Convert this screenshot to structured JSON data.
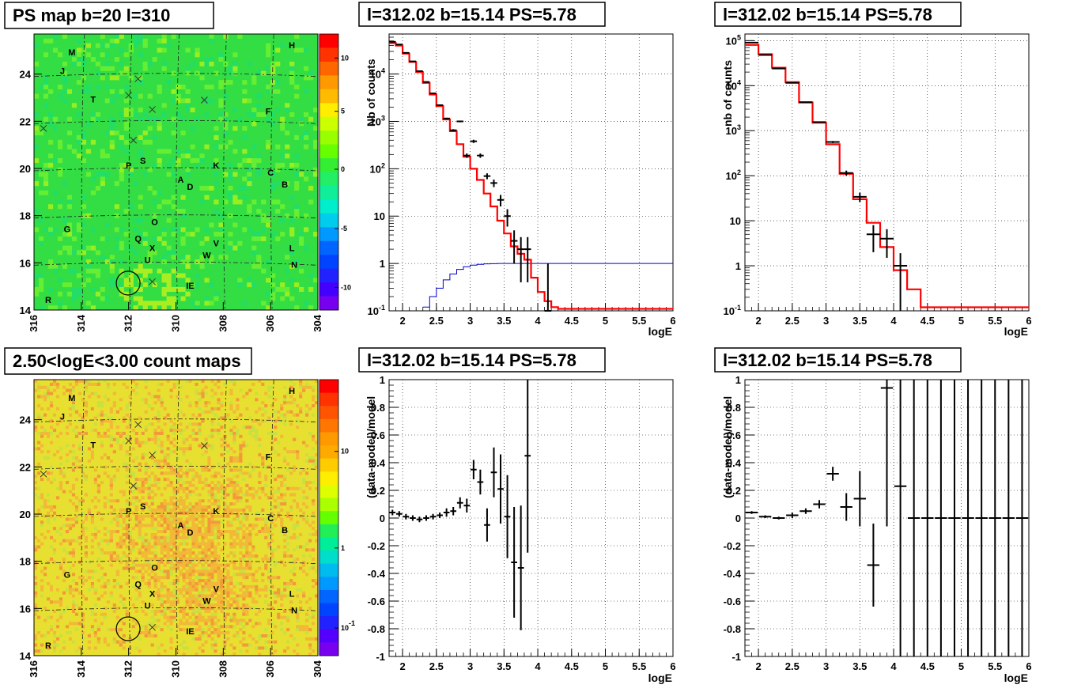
{
  "titles": {
    "map_ps": "PS map b=20 l=310",
    "map_counts": "2.50<logE<3.00 count maps",
    "spec1": "l=312.02 b=15.14 PS=5.78",
    "spec2": "l=312.02 b=15.14 PS=5.78",
    "res1": "l=312.02 b=15.14 PS=5.78",
    "res2": "l=312.02 b=15.14 PS=5.78"
  },
  "labels": {
    "y_nb_counts": "Nb of counts",
    "y_nb_counts_2": "nb of counts",
    "y_resid": "(data-model)/model",
    "x_loge": "logE"
  },
  "colors": {
    "model_line": "#ff0000",
    "ps_line": "#0000cc",
    "data": "#000000",
    "map_bg_ps": "#33dd44",
    "map_bg_counts": "#e8e030"
  },
  "chart_data": [
    {
      "type": "heatmap",
      "title": "PS map b=20 l=310",
      "x_range": [
        316,
        304
      ],
      "y_range": [
        14,
        25.7
      ],
      "x_ticks": [
        "316",
        "314",
        "312",
        "310",
        "308",
        "306",
        "304"
      ],
      "y_ticks": [
        "14",
        "16",
        "18",
        "20",
        "22",
        "24"
      ],
      "colorbar_ticks": [
        "10",
        "5",
        "0",
        "-5",
        "-10"
      ],
      "colorbar_range": [
        -12.5,
        12.5
      ],
      "sources": [
        {
          "name": "M",
          "l": 314.4,
          "b": 24.8
        },
        {
          "name": "H",
          "l": 305.1,
          "b": 25.1
        },
        {
          "name": "J",
          "l": 314.8,
          "b": 24.0
        },
        {
          "name": "T",
          "l": 313.5,
          "b": 22.8
        },
        {
          "name": "F",
          "l": 306.1,
          "b": 22.3
        },
        {
          "name": "P",
          "l": 312.0,
          "b": 20.0
        },
        {
          "name": "S",
          "l": 311.4,
          "b": 20.2
        },
        {
          "name": "K",
          "l": 308.3,
          "b": 20.0
        },
        {
          "name": "C",
          "l": 306.0,
          "b": 19.7
        },
        {
          "name": "A",
          "l": 309.8,
          "b": 19.4
        },
        {
          "name": "D",
          "l": 309.4,
          "b": 19.1
        },
        {
          "name": "B",
          "l": 305.4,
          "b": 19.2
        },
        {
          "name": "O",
          "l": 310.9,
          "b": 17.6
        },
        {
          "name": "G",
          "l": 314.6,
          "b": 17.3
        },
        {
          "name": "Q",
          "l": 311.6,
          "b": 16.9
        },
        {
          "name": "V",
          "l": 308.3,
          "b": 16.7
        },
        {
          "name": "X",
          "l": 311.0,
          "b": 16.5
        },
        {
          "name": "L",
          "l": 305.1,
          "b": 16.5
        },
        {
          "name": "W",
          "l": 308.7,
          "b": 16.2
        },
        {
          "name": "U",
          "l": 311.2,
          "b": 16.0
        },
        {
          "name": "N",
          "l": 305.0,
          "b": 15.8
        },
        {
          "name": "IE",
          "l": 309.4,
          "b": 14.9
        },
        {
          "name": "R",
          "l": 315.4,
          "b": 14.3
        }
      ],
      "crosses": [
        {
          "l": 315.6,
          "b": 21.7
        },
        {
          "l": 312.0,
          "b": 23.1
        },
        {
          "l": 311.6,
          "b": 23.8
        },
        {
          "l": 311.0,
          "b": 22.5
        },
        {
          "l": 308.8,
          "b": 22.9
        },
        {
          "l": 311.8,
          "b": 21.2
        },
        {
          "l": 311.0,
          "b": 15.2
        }
      ],
      "circle": {
        "l": 312.02,
        "b": 15.14
      }
    },
    {
      "type": "heatmap",
      "title": "2.50<logE<3.00 count maps",
      "x_range": [
        316,
        304
      ],
      "y_range": [
        14,
        25.7
      ],
      "x_ticks": [
        "316",
        "314",
        "312",
        "310",
        "308",
        "306",
        "304"
      ],
      "y_ticks": [
        "14",
        "16",
        "18",
        "20",
        "22",
        "24"
      ],
      "colorbar_ticks": [
        "10",
        "1",
        "10-1"
      ],
      "colorbar_scale": "log"
    },
    {
      "type": "line",
      "title": "l=312.02 b=15.14 PS=5.78",
      "xlabel": "logE",
      "ylabel": "Nb of counts",
      "y_scale": "log",
      "xlim": [
        1.8,
        6
      ],
      "ylim": [
        0.1,
        70000
      ],
      "x_ticks": [
        "2",
        "2.5",
        "3",
        "3.5",
        "4",
        "4.5",
        "5",
        "5.5",
        "6"
      ],
      "y_ticks": [
        "10-1",
        "1",
        "10",
        "102",
        "103",
        "104"
      ],
      "bin_width": 0.1,
      "model_bins_low_edge": [
        1.8,
        1.9,
        2.0,
        2.1,
        2.2,
        2.3,
        2.4,
        2.5,
        2.6,
        2.7,
        2.8,
        2.9,
        3.0,
        3.1,
        3.2,
        3.3,
        3.4,
        3.5,
        3.6,
        3.7,
        3.8,
        3.9,
        4.0,
        4.1,
        4.2,
        4.3
      ],
      "model_values": [
        45000,
        40000,
        27000,
        18000,
        11000,
        6500,
        3700,
        2100,
        1100,
        620,
        330,
        180,
        100,
        58,
        30,
        16,
        8,
        4.3,
        2.3,
        1.6,
        1.2,
        0.5,
        0.25,
        0.16,
        0.12,
        0.11
      ],
      "ps_model_bins_low_edge": [
        2.3,
        2.4,
        2.5,
        2.6,
        2.7,
        2.8,
        2.9,
        3.0,
        3.1,
        3.2,
        3.3,
        3.4,
        3.5
      ],
      "ps_model_values": [
        0.12,
        0.2,
        0.3,
        0.45,
        0.6,
        0.75,
        0.85,
        0.92,
        0.96,
        0.98,
        0.99,
        1.0,
        1.0
      ],
      "data_points": [
        {
          "x": 1.85,
          "y": 48000,
          "err": 300
        },
        {
          "x": 1.95,
          "y": 42000,
          "err": 280
        },
        {
          "x": 2.05,
          "y": 28000,
          "err": 220
        },
        {
          "x": 2.15,
          "y": 18500,
          "err": 180
        },
        {
          "x": 2.25,
          "y": 11500,
          "err": 140
        },
        {
          "x": 2.35,
          "y": 6800,
          "err": 110
        },
        {
          "x": 2.45,
          "y": 3900,
          "err": 80
        },
        {
          "x": 2.55,
          "y": 2200,
          "err": 60
        },
        {
          "x": 2.65,
          "y": 1150,
          "err": 45
        },
        {
          "x": 2.75,
          "y": 650,
          "err": 35
        },
        {
          "x": 2.85,
          "y": 1000,
          "err": 40
        },
        {
          "x": 2.95,
          "y": 190,
          "err": 20
        },
        {
          "x": 3.05,
          "y": 380,
          "err": 30
        },
        {
          "x": 3.15,
          "y": 190,
          "err": 20
        },
        {
          "x": 3.25,
          "y": 70,
          "err": 10
        },
        {
          "x": 3.35,
          "y": 50,
          "err": 9
        },
        {
          "x": 3.45,
          "y": 22,
          "err": 6
        },
        {
          "x": 3.55,
          "y": 10,
          "err": 4
        },
        {
          "x": 3.65,
          "y": 3,
          "err": 2
        },
        {
          "x": 3.75,
          "y": 2,
          "err": 1.6
        },
        {
          "x": 3.85,
          "y": 2,
          "err": 1.6
        },
        {
          "x": 4.15,
          "y": 0.1,
          "err": 0.9
        }
      ]
    },
    {
      "type": "line",
      "title": "l=312.02 b=15.14 PS=5.78",
      "xlabel": "logE",
      "ylabel": "nb of counts",
      "y_scale": "log",
      "xlim": [
        1.8,
        6
      ],
      "ylim": [
        0.1,
        140000
      ],
      "x_ticks": [
        "2",
        "2.5",
        "3",
        "3.5",
        "4",
        "4.5",
        "5",
        "5.5",
        "6"
      ],
      "y_ticks": [
        "10-1",
        "1",
        "10",
        "102",
        "103",
        "104",
        "105"
      ],
      "bin_width": 0.2,
      "model_bins_low_edge": [
        1.8,
        2.0,
        2.2,
        2.4,
        2.6,
        2.8,
        3.0,
        3.2,
        3.4,
        3.6,
        3.8,
        4.0,
        4.2,
        4.4
      ],
      "model_values": [
        80000,
        50000,
        25000,
        12000,
        4200,
        1500,
        500,
        110,
        30,
        9,
        2.6,
        0.8,
        0.3,
        0.12
      ],
      "data_points": [
        {
          "x": 1.9,
          "y": 90000,
          "err": 400
        },
        {
          "x": 2.1,
          "y": 48000,
          "err": 300
        },
        {
          "x": 2.3,
          "y": 24000,
          "err": 200
        },
        {
          "x": 2.5,
          "y": 11500,
          "err": 140
        },
        {
          "x": 2.7,
          "y": 4300,
          "err": 80
        },
        {
          "x": 2.9,
          "y": 1550,
          "err": 50
        },
        {
          "x": 3.1,
          "y": 560,
          "err": 30
        },
        {
          "x": 3.3,
          "y": 115,
          "err": 15
        },
        {
          "x": 3.5,
          "y": 34,
          "err": 8
        },
        {
          "x": 3.7,
          "y": 5,
          "err": 3
        },
        {
          "x": 3.9,
          "y": 4,
          "err": 2.5
        },
        {
          "x": 4.1,
          "y": 1,
          "err": 0.9
        }
      ]
    },
    {
      "type": "scatter",
      "title": "l=312.02 b=15.14 PS=5.78",
      "xlabel": "logE",
      "ylabel": "(data-model)/model",
      "xlim": [
        1.8,
        6
      ],
      "ylim": [
        -1,
        1
      ],
      "x_ticks": [
        "2",
        "2.5",
        "3",
        "3.5",
        "4",
        "4.5",
        "5",
        "5.5",
        "6"
      ],
      "y_ticks": [
        "1",
        "0.8",
        "0.6",
        "0.4",
        "0.2",
        "0",
        "-0.2",
        "-0.4",
        "-0.6",
        "-0.8",
        "-1"
      ],
      "points": [
        {
          "x": 1.85,
          "y": 0.04,
          "ey": 0.02
        },
        {
          "x": 1.95,
          "y": 0.03,
          "ey": 0.02
        },
        {
          "x": 2.05,
          "y": 0.01,
          "ey": 0.02
        },
        {
          "x": 2.15,
          "y": 0.0,
          "ey": 0.02
        },
        {
          "x": 2.25,
          "y": -0.01,
          "ey": 0.02
        },
        {
          "x": 2.35,
          "y": 0.0,
          "ey": 0.02
        },
        {
          "x": 2.45,
          "y": 0.01,
          "ey": 0.02
        },
        {
          "x": 2.55,
          "y": 0.02,
          "ey": 0.02
        },
        {
          "x": 2.65,
          "y": 0.04,
          "ey": 0.03
        },
        {
          "x": 2.75,
          "y": 0.05,
          "ey": 0.03
        },
        {
          "x": 2.85,
          "y": 0.11,
          "ey": 0.04
        },
        {
          "x": 2.95,
          "y": 0.09,
          "ey": 0.05
        },
        {
          "x": 3.05,
          "y": 0.35,
          "ey": 0.07
        },
        {
          "x": 3.15,
          "y": 0.26,
          "ey": 0.09
        },
        {
          "x": 3.25,
          "y": -0.05,
          "ey": 0.12
        },
        {
          "x": 3.35,
          "y": 0.33,
          "ey": 0.18
        },
        {
          "x": 3.45,
          "y": 0.21,
          "ey": 0.25
        },
        {
          "x": 3.55,
          "y": 0.01,
          "ey": 0.3
        },
        {
          "x": 3.65,
          "y": -0.32,
          "ey": 0.4
        },
        {
          "x": 3.75,
          "y": -0.36,
          "ey": 0.45
        },
        {
          "x": 3.85,
          "y": 0.45,
          "ey": 0.7
        }
      ]
    },
    {
      "type": "scatter",
      "title": "l=312.02 b=15.14 PS=5.78",
      "xlabel": "logE",
      "ylabel": "(data-model)/model",
      "xlim": [
        1.8,
        6
      ],
      "ylim": [
        -1,
        1
      ],
      "x_ticks": [
        "2",
        "2.5",
        "3",
        "3.5",
        "4",
        "4.5",
        "5",
        "5.5",
        "6"
      ],
      "y_ticks": [
        "1",
        "0.8",
        "0.6",
        "0.4",
        "0.2",
        "0",
        "-0.2",
        "-0.4",
        "-0.6",
        "-0.8",
        "-1"
      ],
      "points": [
        {
          "x": 1.9,
          "y": 0.04,
          "ey": 0.01
        },
        {
          "x": 2.1,
          "y": 0.01,
          "ey": 0.01
        },
        {
          "x": 2.3,
          "y": 0.0,
          "ey": 0.01
        },
        {
          "x": 2.5,
          "y": 0.02,
          "ey": 0.02
        },
        {
          "x": 2.7,
          "y": 0.05,
          "ey": 0.02
        },
        {
          "x": 2.9,
          "y": 0.1,
          "ey": 0.03
        },
        {
          "x": 3.1,
          "y": 0.32,
          "ey": 0.05
        },
        {
          "x": 3.3,
          "y": 0.08,
          "ey": 0.1
        },
        {
          "x": 3.5,
          "y": 0.14,
          "ey": 0.2
        },
        {
          "x": 3.7,
          "y": -0.34,
          "ey": 0.3
        },
        {
          "x": 3.9,
          "y": 0.94,
          "ey": 1.0
        },
        {
          "x": 4.1,
          "y": 0.23,
          "ey": 1.5
        },
        {
          "x": 4.3,
          "y": 0.0,
          "ey": 2.0
        },
        {
          "x": 4.5,
          "y": 0.0,
          "ey": 2.0
        },
        {
          "x": 4.7,
          "y": 0.0,
          "ey": 2.0
        },
        {
          "x": 4.9,
          "y": 0.0,
          "ey": 2.0
        },
        {
          "x": 5.1,
          "y": 0.0,
          "ey": 2.0
        },
        {
          "x": 5.3,
          "y": 0.0,
          "ey": 2.0
        },
        {
          "x": 5.5,
          "y": 0.0,
          "ey": 2.0
        },
        {
          "x": 5.7,
          "y": 0.0,
          "ey": 2.0
        },
        {
          "x": 5.9,
          "y": 0.0,
          "ey": 2.0
        }
      ]
    }
  ]
}
